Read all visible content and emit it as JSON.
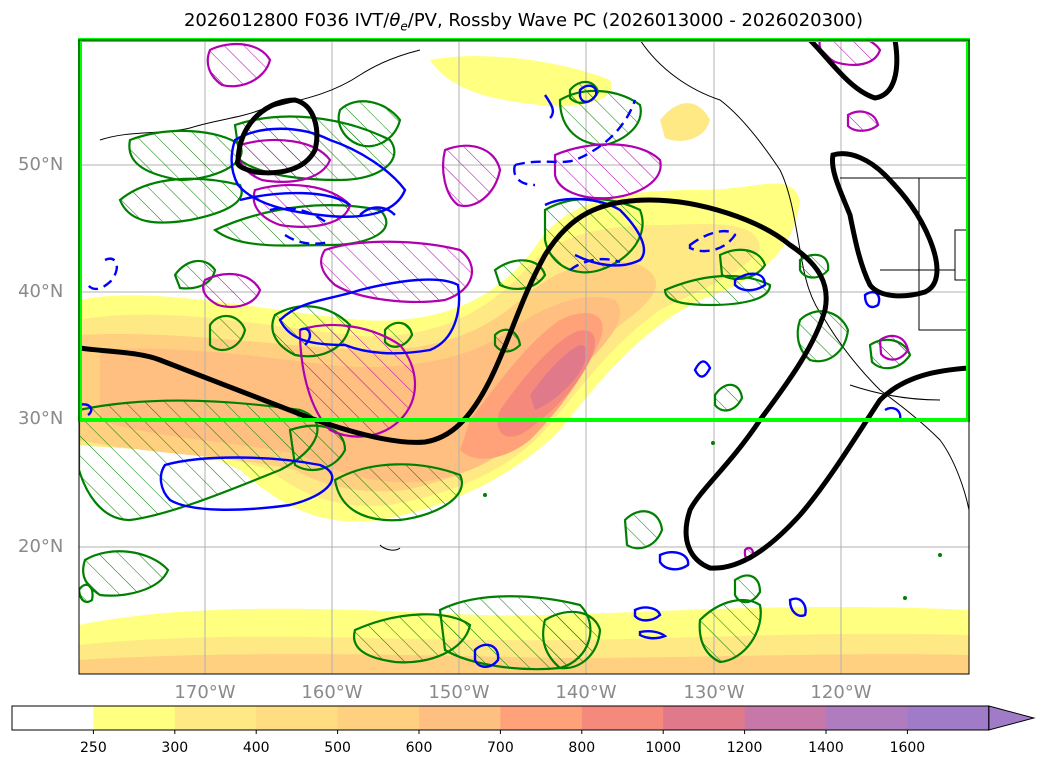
{
  "title": "2026012800 F036 IVT/θₑ/PV, Rossby Wave PC (2026013000 - 2026020300)",
  "title_parts": {
    "prefix": "2026012800 F036 IVT/",
    "theta": "θ",
    "theta_sub": "e",
    "suffix": "/PV, Rossby Wave PC (2026013000 - 2026020300)"
  },
  "map": {
    "lat_labels": [
      "50°N",
      "40°N",
      "30°N",
      "20°N"
    ],
    "lon_labels": [
      "170°W",
      "160°W",
      "150°W",
      "140°W",
      "130°W",
      "120°W"
    ],
    "highlight_box_color": "#00ff00",
    "contour_colors": {
      "rossby_pc": "#000000",
      "theta_e": "#0000ff",
      "pv_green": "#008000",
      "pv_magenta": "#b000b0"
    }
  },
  "colorbar": {
    "labels": [
      "250",
      "300",
      "400",
      "500",
      "600",
      "700",
      "800",
      "1000",
      "1200",
      "1400",
      "1600"
    ],
    "colors": [
      "#ffffff",
      "#ffff80",
      "#ffe985",
      "#ffdd80",
      "#ffd080",
      "#ffbf80",
      "#ffa27a",
      "#f58a7c",
      "#e07a8a",
      "#c878a8",
      "#b07cc0",
      "#a07cc8"
    ],
    "extend": "max"
  }
}
